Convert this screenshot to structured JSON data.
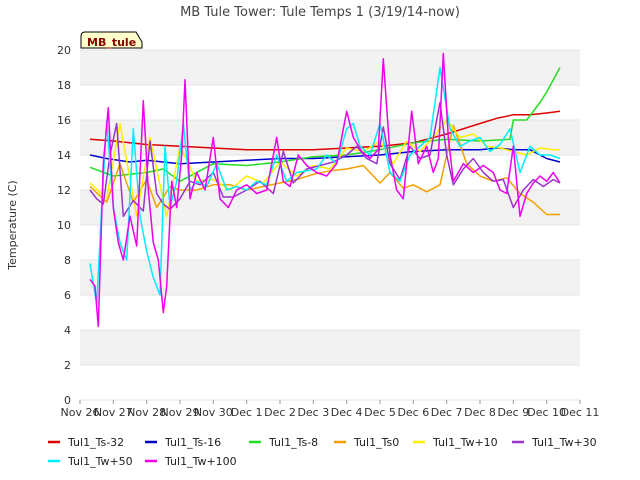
{
  "chart_data": {
    "type": "line",
    "title": "MB Tule Tower: Tule Temps 1 (3/19/14-now)",
    "xlabel": "",
    "ylabel": "Temperature (C)",
    "ylim": [
      0,
      20
    ],
    "yticks": [
      0,
      2,
      4,
      6,
      8,
      10,
      12,
      14,
      16,
      18,
      20
    ],
    "xlim": [
      0,
      15
    ],
    "xtick_labels": [
      "Nov 26",
      "Nov 27",
      "Nov 28",
      "Nov 29",
      "Nov 30",
      "Dec 1",
      "Dec 2",
      "Dec 3",
      "Dec 4",
      "Dec 5",
      "Dec 6",
      "Dec 7",
      "Dec 8",
      "Dec 9",
      "Dec 10",
      "Dec 11"
    ],
    "grid": "horizontal bands",
    "station_tag": "MB_tule",
    "legend_position": "bottom",
    "series": [
      {
        "name": "Tul1_Ts-32",
        "color": "#dd0000",
        "x": [
          0.3,
          1,
          2,
          3,
          4,
          5,
          6,
          7,
          8,
          9,
          10,
          11,
          12,
          12.5,
          13,
          13.5,
          14,
          14.4
        ],
        "y": [
          14.9,
          14.8,
          14.6,
          14.5,
          14.4,
          14.3,
          14.3,
          14.3,
          14.4,
          14.5,
          14.7,
          15.2,
          15.8,
          16.1,
          16.3,
          16.3,
          16.4,
          16.5
        ]
      },
      {
        "name": "Tul1_Ts-16",
        "color": "#0000cc",
        "x": [
          0.3,
          0.8,
          1.5,
          2,
          2.5,
          3,
          4,
          5,
          6,
          7,
          8,
          9,
          10,
          11,
          12,
          12.5,
          13,
          13.5,
          14,
          14.4
        ],
        "y": [
          14.0,
          13.8,
          13.6,
          13.7,
          13.6,
          13.5,
          13.6,
          13.7,
          13.8,
          13.8,
          13.9,
          14.0,
          14.2,
          14.3,
          14.3,
          14.4,
          14.3,
          14.3,
          13.8,
          13.6
        ]
      },
      {
        "name": "Tul1_Ts-8",
        "color": "#22dd22",
        "x": [
          0.3,
          1,
          2,
          2.5,
          3,
          4,
          5,
          6,
          7,
          8,
          9,
          10,
          11,
          12,
          12.9,
          13,
          13.4,
          13.8,
          14,
          14.4
        ],
        "y": [
          13.3,
          12.8,
          13.0,
          13.2,
          12.5,
          13.5,
          13.4,
          13.6,
          13.9,
          14.0,
          14.3,
          14.7,
          14.9,
          14.8,
          14.9,
          16.0,
          16.0,
          17.0,
          17.6,
          19.0
        ]
      },
      {
        "name": "Tul1_Ts0",
        "color": "#f5a000",
        "x": [
          0.3,
          0.8,
          1.2,
          1.6,
          2,
          2.3,
          2.7,
          3,
          3.5,
          4,
          4.5,
          5,
          5.5,
          6,
          6.5,
          7,
          7.5,
          8,
          8.5,
          9,
          9.3,
          9.7,
          10,
          10.4,
          10.8,
          11.2,
          11.6,
          12,
          12.4,
          12.8,
          13.2,
          13.6,
          14,
          14.4
        ],
        "y": [
          12.2,
          11.3,
          13.5,
          11.3,
          12.6,
          11.0,
          12.2,
          12.0,
          12.0,
          12.3,
          12.3,
          12.0,
          12.2,
          12.4,
          12.6,
          12.9,
          13.1,
          13.2,
          13.4,
          12.4,
          13.0,
          12.1,
          12.3,
          11.9,
          12.3,
          15.7,
          13.5,
          12.8,
          12.5,
          12.7,
          11.8,
          11.3,
          10.6,
          10.6
        ]
      },
      {
        "name": "Tul1_Tw+10",
        "color": "#ffee00",
        "x": [
          0.3,
          0.8,
          1.2,
          1.7,
          2.1,
          2.6,
          3.0,
          3.5,
          4,
          4.5,
          5,
          5.5,
          6,
          6.5,
          7,
          7.5,
          8,
          8.5,
          9,
          9.4,
          9.8,
          10.2,
          10.6,
          11,
          11.4,
          11.8,
          12.2,
          12.6,
          13,
          13.4,
          13.8,
          14.2,
          14.4
        ],
        "y": [
          12.4,
          11.5,
          15.8,
          10.5,
          15.0,
          10.5,
          14.5,
          12.5,
          12.6,
          12.0,
          12.8,
          12.4,
          13.6,
          12.8,
          13.4,
          13.2,
          14.4,
          14.2,
          14.8,
          13.5,
          14.8,
          14.2,
          15.0,
          16.0,
          15.0,
          15.2,
          14.5,
          14.4,
          14.2,
          14.0,
          14.4,
          14.3,
          14.3
        ]
      },
      {
        "name": "Tul1_Tw+30",
        "color": "#9933cc",
        "x": [
          0.3,
          0.5,
          0.7,
          0.9,
          1.1,
          1.3,
          1.6,
          1.9,
          2.1,
          2.3,
          2.5,
          2.7,
          3.0,
          3.3,
          3.6,
          4.0,
          4.3,
          4.6,
          5.0,
          5.4,
          5.8,
          6.1,
          6.4,
          6.8,
          7.2,
          7.6,
          8.0,
          8.3,
          8.6,
          8.9,
          9.1,
          9.3,
          9.6,
          9.9,
          10.2,
          10.5,
          10.8,
          11.0,
          11.2,
          11.5,
          11.8,
          12.1,
          12.4,
          12.7,
          13.0,
          13.3,
          13.6,
          13.9,
          14.2,
          14.4
        ],
        "y": [
          12.0,
          11.5,
          11.2,
          14.0,
          15.8,
          10.5,
          11.4,
          10.8,
          14.8,
          11.8,
          11.2,
          10.9,
          11.5,
          12.5,
          12.3,
          13.0,
          11.6,
          11.6,
          12.0,
          12.5,
          11.8,
          14.2,
          12.4,
          13.2,
          13.4,
          13.6,
          14.0,
          14.5,
          13.8,
          13.5,
          15.6,
          13.5,
          12.6,
          14.5,
          13.8,
          14.0,
          17.0,
          14.0,
          12.3,
          13.2,
          13.8,
          13.0,
          12.5,
          12.6,
          11.0,
          12.0,
          12.6,
          12.2,
          12.6,
          12.4
        ]
      },
      {
        "name": "Tul1_Tw+50",
        "color": "#00eeff",
        "x": [
          0.3,
          0.5,
          0.65,
          0.8,
          1.0,
          1.2,
          1.4,
          1.6,
          1.8,
          2.0,
          2.2,
          2.4,
          2.55,
          2.7,
          2.9,
          3.1,
          3.3,
          3.5,
          3.8,
          4.1,
          4.4,
          4.7,
          5.0,
          5.3,
          5.6,
          5.9,
          6.2,
          6.5,
          6.8,
          7.1,
          7.4,
          7.7,
          8.0,
          8.2,
          8.4,
          8.7,
          9.0,
          9.3,
          9.6,
          9.9,
          10.2,
          10.5,
          10.8,
          11.1,
          11.4,
          11.7,
          12.0,
          12.3,
          12.6,
          12.9,
          13.2,
          13.5,
          13.8,
          14.1,
          14.4
        ],
        "y": [
          7.8,
          5.5,
          11.0,
          16.0,
          11.0,
          9.0,
          8.0,
          15.5,
          10.5,
          8.5,
          7.0,
          6.0,
          14.5,
          11.0,
          12.5,
          15.8,
          12.0,
          12.5,
          12.2,
          13.5,
          12.0,
          12.2,
          12.0,
          12.5,
          12.3,
          14.0,
          12.5,
          13.0,
          13.1,
          13.2,
          14.0,
          13.5,
          15.5,
          15.8,
          14.5,
          14.0,
          15.8,
          13.0,
          12.5,
          14.0,
          14.5,
          15.0,
          19.0,
          15.5,
          14.5,
          14.8,
          15.0,
          14.2,
          14.6,
          15.5,
          13.0,
          14.5,
          14.0,
          14.0,
          13.8
        ]
      },
      {
        "name": "Tul1_Tw+100",
        "color": "#ee00ee",
        "x": [
          0.3,
          0.45,
          0.55,
          0.7,
          0.85,
          1.0,
          1.15,
          1.3,
          1.5,
          1.7,
          1.9,
          2.05,
          2.2,
          2.35,
          2.5,
          2.6,
          2.75,
          2.9,
          3.05,
          3.15,
          3.3,
          3.5,
          3.75,
          4.0,
          4.2,
          4.45,
          4.7,
          5.0,
          5.3,
          5.6,
          5.9,
          6.1,
          6.3,
          6.55,
          6.8,
          7.1,
          7.4,
          7.7,
          8.0,
          8.2,
          8.45,
          8.7,
          8.95,
          9.1,
          9.3,
          9.5,
          9.7,
          9.95,
          10.15,
          10.4,
          10.6,
          10.75,
          10.9,
          11.05,
          11.2,
          11.5,
          11.8,
          12.1,
          12.4,
          12.6,
          12.8,
          13.0,
          13.2,
          13.4,
          13.6,
          13.8,
          14.0,
          14.2,
          14.4
        ],
        "y": [
          6.9,
          6.5,
          4.2,
          13.5,
          16.7,
          11.0,
          9.0,
          8.0,
          10.5,
          8.8,
          17.1,
          12.0,
          9.0,
          8.0,
          5.0,
          6.5,
          12.5,
          11.0,
          14.0,
          18.3,
          11.5,
          13.0,
          12.0,
          15.0,
          11.5,
          11.0,
          12.0,
          12.3,
          11.8,
          12.0,
          15.0,
          12.5,
          12.2,
          14.0,
          13.4,
          13.0,
          12.8,
          13.5,
          16.5,
          15.0,
          14.2,
          13.8,
          14.3,
          19.5,
          14.0,
          12.0,
          11.5,
          16.5,
          13.5,
          14.5,
          13.0,
          13.8,
          19.8,
          15.0,
          12.5,
          13.5,
          13.0,
          13.4,
          13.0,
          12.0,
          11.8,
          14.5,
          10.5,
          11.8,
          12.4,
          12.8,
          12.5,
          13.0,
          12.4
        ]
      }
    ]
  }
}
